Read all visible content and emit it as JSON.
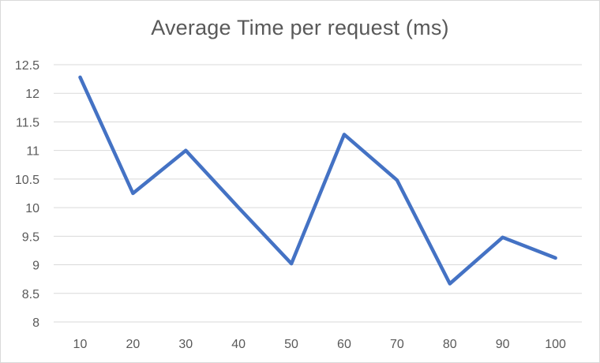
{
  "chart_data": {
    "type": "line",
    "title": "Average Time per request (ms)",
    "xlabel": "",
    "ylabel": "",
    "categories": [
      "10",
      "20",
      "30",
      "40",
      "50",
      "60",
      "70",
      "80",
      "90",
      "100"
    ],
    "series": [
      {
        "values": [
          12.28,
          10.25,
          11.0,
          10.0,
          9.02,
          11.28,
          10.48,
          8.67,
          9.48,
          9.12
        ]
      }
    ],
    "ylim": [
      8,
      12.5
    ],
    "y_ticks": [
      "8",
      "8.5",
      "9",
      "9.5",
      "10",
      "10.5",
      "11",
      "11.5",
      "12",
      "12.5"
    ],
    "grid": true,
    "legend": "none",
    "line_color": "#4472c4",
    "grid_color": "#d9d9d9",
    "text_color": "#595959"
  }
}
